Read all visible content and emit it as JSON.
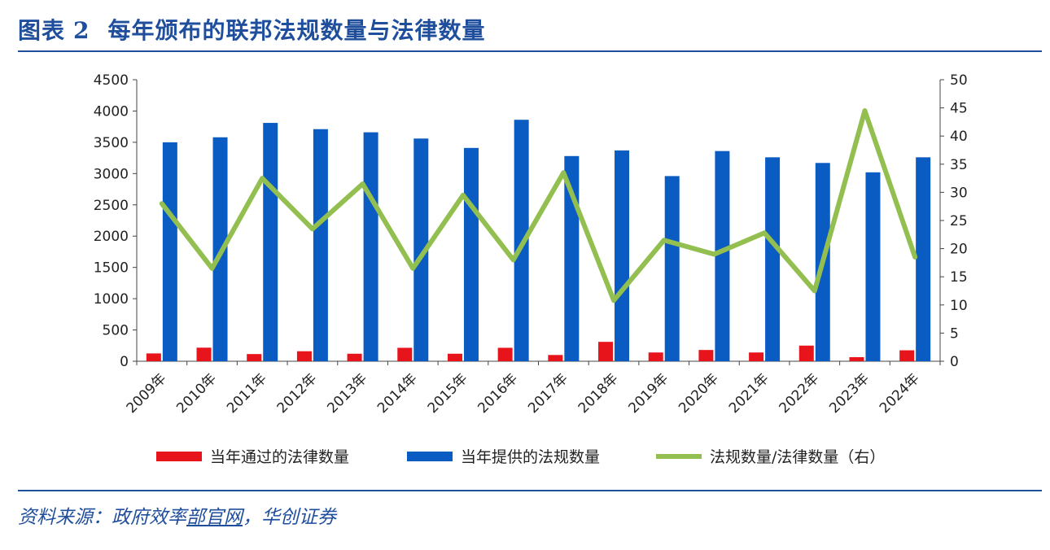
{
  "header": {
    "figure_label": "图表",
    "figure_number": "2",
    "title": "每年颁布的联邦法规数量与法律数量"
  },
  "footer": {
    "source_prefix": "资料来源：政府效率",
    "source_link": "部官网",
    "source_suffix": "，华创证券"
  },
  "chart_data": {
    "type": "bar",
    "categories": [
      "2009年",
      "2010年",
      "2011年",
      "2012年",
      "2013年",
      "2014年",
      "2015年",
      "2016年",
      "2017年",
      "2018年",
      "2019年",
      "2020年",
      "2021年",
      "2022年",
      "2023年",
      "2024年"
    ],
    "series": [
      {
        "name": "当年通过的法律数量",
        "type": "bar",
        "axis": "left",
        "color": "#e8141c",
        "values": [
          125,
          217,
          115,
          160,
          120,
          215,
          120,
          215,
          100,
          310,
          140,
          180,
          140,
          250,
          65,
          175
        ]
      },
      {
        "name": "当年提供的法规数量",
        "type": "bar",
        "axis": "left",
        "color": "#0a5cc2",
        "values": [
          3500,
          3580,
          3810,
          3710,
          3660,
          3560,
          3410,
          3860,
          3280,
          3370,
          2960,
          3360,
          3260,
          3170,
          3020,
          3260
        ]
      },
      {
        "name": "法规数量/法律数量（右）",
        "type": "line",
        "axis": "right",
        "color": "#92bf4f",
        "values": [
          28,
          16.5,
          32.5,
          23.5,
          31.5,
          16.5,
          29.5,
          18,
          33.5,
          10.8,
          21.5,
          19,
          22.8,
          12.5,
          44.5,
          18.5
        ]
      }
    ],
    "y_left": {
      "min": 0,
      "max": 4500,
      "ticks": [
        0,
        500,
        1000,
        1500,
        2000,
        2500,
        3000,
        3500,
        4000,
        4500
      ]
    },
    "y_right": {
      "min": 0,
      "max": 50,
      "ticks": [
        0,
        5,
        10,
        15,
        20,
        25,
        30,
        35,
        40,
        45,
        50
      ]
    },
    "legend_position": "bottom",
    "grid": false
  }
}
